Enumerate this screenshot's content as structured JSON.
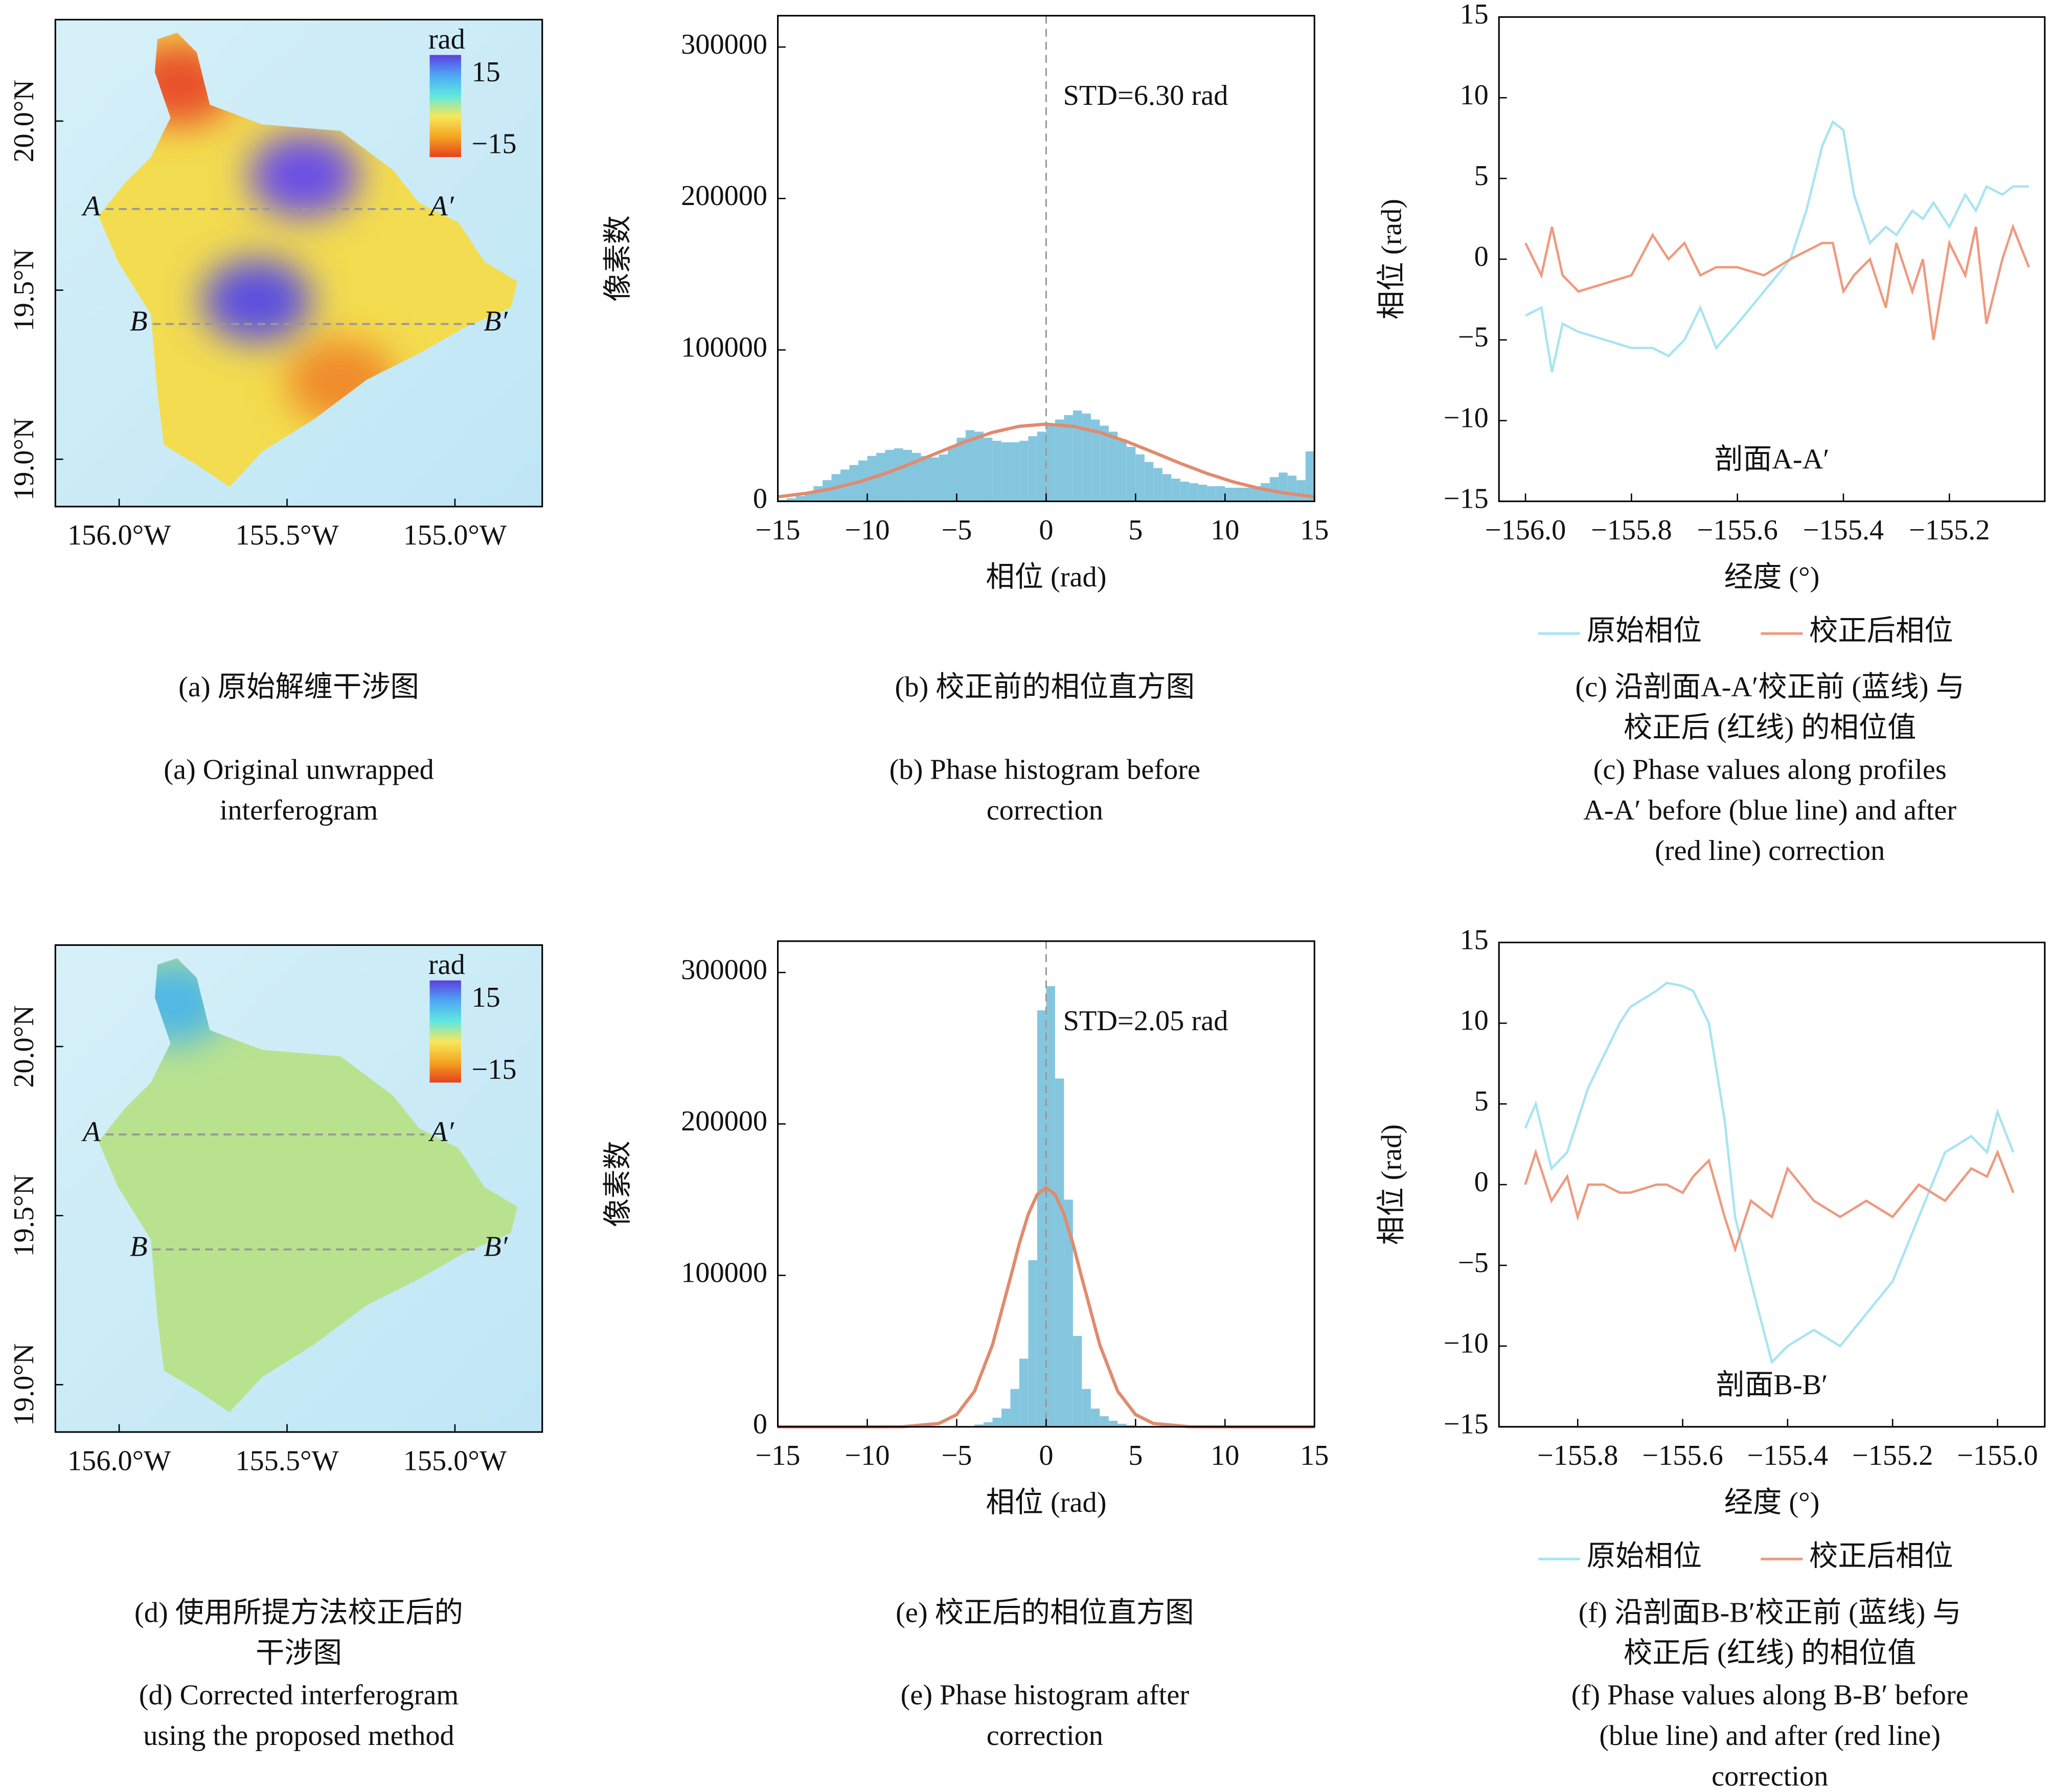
{
  "chart_data": [
    {
      "type": "map",
      "xlim": [
        -156.19,
        -154.74
      ],
      "ylim": [
        18.86,
        20.3
      ],
      "xticks": [
        {
          "value": -156.0,
          "label": "156.0°W"
        },
        {
          "value": -155.5,
          "label": "155.5°W"
        },
        {
          "value": -155.0,
          "label": "155.0°W"
        }
      ],
      "yticks": [
        {
          "value": 19.0,
          "label": "19.0°N"
        },
        {
          "value": 19.5,
          "label": "19.5°N"
        },
        {
          "value": 20.0,
          "label": "20.0°N"
        }
      ],
      "island_color": "#f3dc4f",
      "features": [
        {
          "lon": -155.82,
          "lat": 20.11,
          "color": "#e8502a"
        },
        {
          "lon": -155.34,
          "lat": 19.23,
          "color": "#f08a2a"
        },
        {
          "lon": -155.59,
          "lat": 19.47,
          "color": "#5b4fe0"
        },
        {
          "lon": -155.45,
          "lat": 19.84,
          "color": "#6a4fe6"
        }
      ],
      "colorbar": {
        "label": "rad",
        "ticks": [
          15,
          {
            "value": -15,
            "label": "−15"
          }
        ],
        "colors": [
          "#5b3fe0",
          "#4fa8f5",
          "#5ee8e0",
          "#f7e85a",
          "#f5a623",
          "#e8401c"
        ]
      },
      "profiles": [
        {
          "start": "A",
          "end": "A′",
          "lat": 19.74,
          "lon": [
            -156.04,
            -155.09
          ]
        },
        {
          "start": "B",
          "end": "B′",
          "lat": 19.4,
          "lon": [
            -155.9,
            -154.93
          ]
        }
      ],
      "caption_zh": [
        "(a) 原始解缠干涉图"
      ],
      "caption_en": [
        "(a) Original unwrapped",
        "interferogram"
      ]
    },
    {
      "type": "histogram",
      "bins": [
        -15,
        -14.5,
        -14,
        -13.5,
        -13,
        -12.5,
        -12,
        -11.5,
        -11,
        -10.5,
        -10,
        -9.5,
        -9,
        -8.5,
        -8,
        -7.5,
        -7,
        -6.5,
        -6,
        -5.5,
        -5,
        -4.5,
        -4,
        -3.5,
        -3,
        -2.5,
        -2,
        -1.5,
        -1,
        -0.5,
        0,
        0.5,
        1,
        1.5,
        2,
        2.5,
        3,
        3.5,
        4,
        4.5,
        5,
        5.5,
        6,
        6.5,
        7,
        7.5,
        8,
        8.5,
        9,
        9.5,
        10,
        10.5,
        11,
        11.5,
        12,
        12.5,
        13,
        13.5,
        14,
        14.5,
        15
      ],
      "values": [
        1000,
        2000,
        3500,
        6000,
        10000,
        14000,
        18000,
        21000,
        24000,
        27000,
        30000,
        32000,
        34000,
        35000,
        34000,
        32000,
        30000,
        29000,
        31000,
        36000,
        42000,
        47000,
        46000,
        42000,
        40000,
        39000,
        39000,
        40000,
        43000,
        46000,
        50000,
        54000,
        57000,
        60000,
        58000,
        54000,
        50000,
        46000,
        41000,
        36000,
        31000,
        26000,
        22000,
        18000,
        15000,
        13000,
        12000,
        11000,
        10000,
        10000,
        9000,
        9000,
        9000,
        10000,
        12000,
        16000,
        19000,
        17000,
        14000,
        33000
      ],
      "color": "#85c6df",
      "fit": {
        "x": [
          -15,
          -13.5,
          -12,
          -10.5,
          -9,
          -7.5,
          -6,
          -4.5,
          -3,
          -1.5,
          0,
          1.5,
          3,
          4.5,
          6,
          7.5,
          9,
          10.5,
          12,
          13.5,
          15
        ],
        "values": [
          2990,
          5140,
          8310,
          12720,
          18380,
          25110,
          32410,
          39510,
          45530,
          49570,
          51000,
          49570,
          45530,
          39510,
          32410,
          25110,
          18380,
          12720,
          8310,
          5140,
          2990
        ],
        "color": "#e08b6e"
      },
      "vline": 0,
      "xlim": [
        -15,
        15
      ],
      "ylim": [
        0,
        320700
      ],
      "xticks": [
        {
          "value": -15,
          "label": "−15"
        },
        {
          "value": -10,
          "label": "−10"
        },
        {
          "value": -5,
          "label": "−5"
        },
        0,
        5,
        10,
        15
      ],
      "yticks": [
        0,
        100000,
        200000,
        300000
      ],
      "xlabel": "相位 (rad)",
      "ylabel": "像素数",
      "annotation": "STD=6.30 rad",
      "caption_zh": [
        "(b) 校正前的相位直方图"
      ],
      "caption_en": [
        "(b) Phase histogram before",
        "correction"
      ]
    },
    {
      "type": "line",
      "x": [
        -156.0,
        -155.97,
        -155.95,
        -155.93,
        -155.9,
        -155.85,
        -155.8,
        -155.76,
        -155.73,
        -155.7,
        -155.67,
        -155.64,
        -155.6,
        -155.55,
        -155.5,
        -155.47,
        -155.44,
        -155.42,
        -155.4,
        -155.38,
        -155.35,
        -155.32,
        -155.3,
        -155.27,
        -155.25,
        -155.23,
        -155.2,
        -155.17,
        -155.15,
        -155.13,
        -155.1,
        -155.08,
        -155.05
      ],
      "series": [
        {
          "name": "原始相位",
          "color": "#a8e4f2",
          "values": [
            -3.5,
            -3,
            -7,
            -4,
            -4.5,
            -5,
            -5.5,
            -5.5,
            -6,
            -5,
            -3,
            -5.5,
            -4,
            -2,
            0,
            3,
            7,
            8.5,
            8,
            4,
            1,
            2,
            1.5,
            3,
            2.5,
            3.5,
            2,
            4,
            3,
            4.5,
            4,
            4.5,
            4.5
          ]
        },
        {
          "name": "校正后相位",
          "color": "#ee9a7f",
          "values": [
            1,
            -1,
            2,
            -1,
            -2,
            -1.5,
            -1,
            1.5,
            0,
            1,
            -1,
            -0.5,
            -0.5,
            -1,
            0,
            0.5,
            1,
            1,
            -2,
            -1,
            0,
            -3,
            1,
            -2,
            0,
            -5,
            1,
            -1,
            2,
            -4,
            0,
            2,
            -0.5
          ]
        }
      ],
      "xlim": [
        -156.05,
        -155.02
      ],
      "ylim": [
        -15,
        15
      ],
      "xticks": [
        {
          "value": -156.0,
          "label": "−156.0"
        },
        {
          "value": -155.8,
          "label": "−155.8"
        },
        {
          "value": -155.6,
          "label": "−155.6"
        },
        {
          "value": -155.4,
          "label": "−155.4"
        },
        {
          "value": -155.2,
          "label": "−155.2"
        }
      ],
      "yticks": [
        {
          "value": -15,
          "label": "−15"
        },
        {
          "value": -10,
          "label": "−10"
        },
        {
          "value": -5,
          "label": "−5"
        },
        0,
        5,
        10,
        15
      ],
      "xlabel": "经度 (°)",
      "ylabel": "相位 (rad)",
      "annotation": "剖面A-A′",
      "caption_zh": [
        "(c) 沿剖面A-A′校正前 (蓝线) 与",
        "校正后 (红线) 的相位值"
      ],
      "caption_en": [
        "(c) Phase values along profiles",
        "A-A′ before (blue line) and after",
        "(red line) correction"
      ]
    },
    {
      "type": "map",
      "xlim": [
        -156.19,
        -154.74
      ],
      "ylim": [
        18.86,
        20.3
      ],
      "xticks": [
        {
          "value": -156.0,
          "label": "156.0°W"
        },
        {
          "value": -155.5,
          "label": "155.5°W"
        },
        {
          "value": -155.0,
          "label": "155.0°W"
        }
      ],
      "yticks": [
        {
          "value": 19.0,
          "label": "19.0°N"
        },
        {
          "value": 19.5,
          "label": "19.5°N"
        },
        {
          "value": 20.0,
          "label": "20.0°N"
        }
      ],
      "island_color": "#b9e28f",
      "features": [
        {
          "lon": -155.84,
          "lat": 20.13,
          "color": "#4fb7e6"
        }
      ],
      "colorbar": {
        "label": "rad",
        "ticks": [
          15,
          {
            "value": -15,
            "label": "−15"
          }
        ],
        "colors": [
          "#5b3fe0",
          "#4fa8f5",
          "#5ee8e0",
          "#f7e85a",
          "#f5a623",
          "#e8401c"
        ]
      },
      "profiles": [
        {
          "start": "A",
          "end": "A′",
          "lat": 19.74,
          "lon": [
            -156.04,
            -155.09
          ]
        },
        {
          "start": "B",
          "end": "B′",
          "lat": 19.4,
          "lon": [
            -155.9,
            -154.93
          ]
        }
      ],
      "caption_zh": [
        "(d) 使用所提方法校正后的",
        "干涉图"
      ],
      "caption_en": [
        "(d) Corrected interferogram",
        "using the proposed method"
      ]
    },
    {
      "type": "histogram",
      "bins": [
        -15,
        -14.5,
        -14,
        -13.5,
        -13,
        -12.5,
        -12,
        -11.5,
        -11,
        -10.5,
        -10,
        -9.5,
        -9,
        -8.5,
        -8,
        -7.5,
        -7,
        -6.5,
        -6,
        -5.5,
        -5,
        -4.5,
        -4,
        -3.5,
        -3,
        -2.5,
        -2,
        -1.5,
        -1,
        -0.5,
        0,
        0.5,
        1,
        1.5,
        2,
        2.5,
        3,
        3.5,
        4,
        4.5,
        5,
        5.5,
        6,
        6.5,
        7,
        7.5,
        8,
        8.5,
        9,
        9.5,
        10,
        10.5,
        11,
        11.5,
        12,
        12.5,
        13,
        13.5,
        14,
        14.5,
        15
      ],
      "values": [
        0,
        0,
        0,
        0,
        0,
        0,
        0,
        0,
        0,
        0,
        0,
        0,
        0,
        0,
        0,
        0,
        0,
        0,
        0,
        0,
        0,
        0,
        1500,
        3000,
        6000,
        12000,
        25000,
        45000,
        110000,
        275000,
        291000,
        230000,
        150000,
        60000,
        25000,
        12000,
        7000,
        4000,
        2000,
        1000,
        0,
        0,
        0,
        0,
        0,
        0,
        0,
        0,
        0,
        0,
        0,
        0,
        0,
        0,
        0,
        0,
        0,
        0,
        0,
        0
      ],
      "color": "#85c6df",
      "fit": {
        "x": [
          -15,
          -10,
          -8,
          -6,
          -5,
          -4,
          -3,
          -2,
          -1.5,
          -1,
          -0.5,
          0,
          0.5,
          1,
          1.5,
          2,
          3,
          4,
          5,
          6,
          8,
          10,
          15
        ],
        "values": [
          0,
          0,
          78,
          2180,
          8070,
          23500,
          54100,
          98200,
          120900,
          140300,
          153400,
          158000,
          153400,
          140300,
          120900,
          98200,
          54100,
          23500,
          8070,
          2180,
          78,
          0,
          0
        ],
        "color": "#e08b6e"
      },
      "vline": 0,
      "xlim": [
        -15,
        15
      ],
      "ylim": [
        0,
        320700
      ],
      "xticks": [
        {
          "value": -15,
          "label": "−15"
        },
        {
          "value": -10,
          "label": "−10"
        },
        {
          "value": -5,
          "label": "−5"
        },
        0,
        5,
        10,
        15
      ],
      "yticks": [
        0,
        100000,
        200000,
        300000
      ],
      "xlabel": "相位 (rad)",
      "ylabel": "像素数",
      "annotation": "STD=2.05 rad",
      "caption_zh": [
        "(e) 校正后的相位直方图"
      ],
      "caption_en": [
        "(e) Phase histogram after",
        "correction"
      ]
    },
    {
      "type": "line",
      "x": [
        -155.9,
        -155.88,
        -155.85,
        -155.82,
        -155.8,
        -155.78,
        -155.75,
        -155.72,
        -155.7,
        -155.65,
        -155.63,
        -155.6,
        -155.58,
        -155.55,
        -155.52,
        -155.5,
        -155.47,
        -155.43,
        -155.4,
        -155.35,
        -155.3,
        -155.25,
        -155.2,
        -155.15,
        -155.1,
        -155.05,
        -155.02,
        -155.0,
        -154.97
      ],
      "series": [
        {
          "name": "原始相位",
          "color": "#a8e4f2",
          "values": [
            3.5,
            5,
            1,
            2,
            4,
            6,
            8,
            10,
            11,
            12,
            12.5,
            12.3,
            12,
            10,
            4,
            -2,
            -6,
            -11,
            -10,
            -9,
            -10,
            -8,
            -6,
            -2,
            2,
            3,
            2,
            4.5,
            2
          ]
        },
        {
          "name": "校正后相位",
          "color": "#ee9a7f",
          "values": [
            0,
            2,
            -1,
            0.5,
            -2,
            0,
            0,
            -0.5,
            -0.5,
            0,
            0,
            -0.5,
            0.5,
            1.5,
            -2,
            -4,
            -1,
            -2,
            1,
            -1,
            -2,
            -1,
            -2,
            0,
            -1,
            1,
            0.5,
            2,
            -0.5
          ]
        }
      ],
      "xlim": [
        -155.95,
        -154.91
      ],
      "ylim": [
        -15,
        15
      ],
      "xticks": [
        {
          "value": -155.8,
          "label": "−155.8"
        },
        {
          "value": -155.6,
          "label": "−155.6"
        },
        {
          "value": -155.4,
          "label": "−155.4"
        },
        {
          "value": -155.2,
          "label": "−155.2"
        },
        {
          "value": -155.0,
          "label": "−155.0"
        }
      ],
      "yticks": [
        {
          "value": -15,
          "label": "−15"
        },
        {
          "value": -10,
          "label": "−10"
        },
        {
          "value": -5,
          "label": "−5"
        },
        0,
        5,
        10,
        15
      ],
      "xlabel": "经度 (°)",
      "ylabel": "相位 (rad)",
      "annotation": "剖面B-B′",
      "caption_zh": [
        "(f) 沿剖面B-B′校正前 (蓝线) 与",
        "校正后 (红线) 的相位值"
      ],
      "caption_en": [
        "(f) Phase values along B-B′ before",
        "(blue line) and after (red line)",
        "correction"
      ]
    }
  ]
}
